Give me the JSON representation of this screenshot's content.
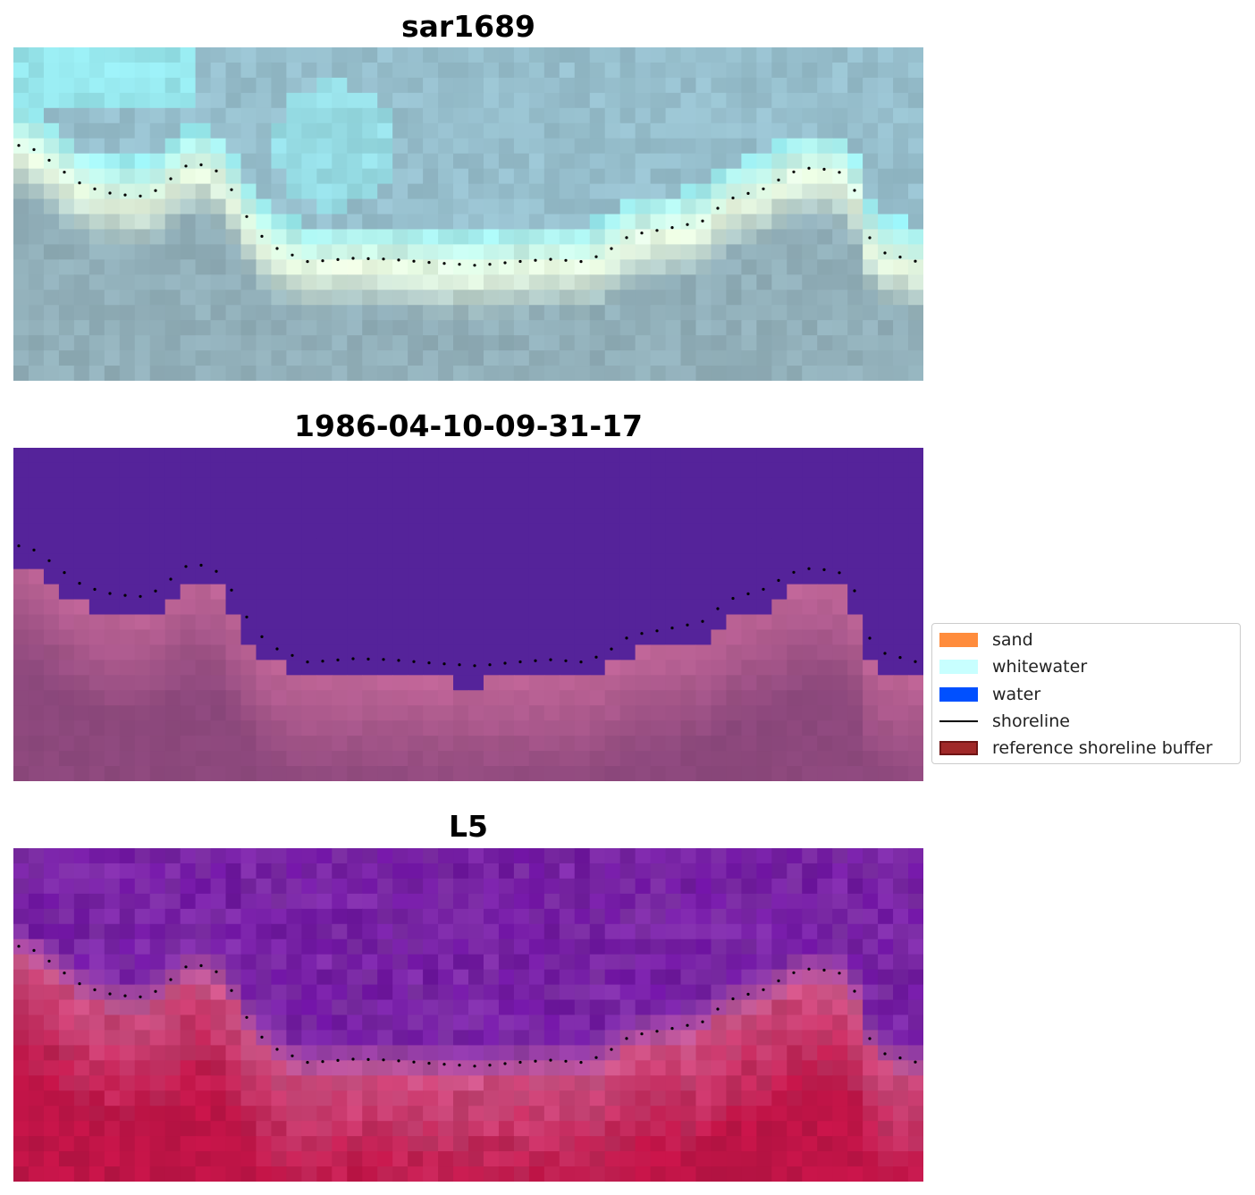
{
  "panels": [
    {
      "title": "sar1689",
      "style": "rgb"
    },
    {
      "title": "1986-04-10-09-31-17",
      "style": "classified"
    },
    {
      "title": "L5",
      "style": "index"
    }
  ],
  "legend": {
    "items": [
      {
        "label": "sand",
        "color": "#ff8c3c",
        "kind": "patch"
      },
      {
        "label": "whitewater",
        "color": "#c8ffff",
        "kind": "patch"
      },
      {
        "label": "water",
        "color": "#0050ff",
        "kind": "patch"
      },
      {
        "label": "shoreline",
        "color": "#000000",
        "kind": "line"
      },
      {
        "label": "reference shoreline buffer",
        "color": "#a02828",
        "kind": "patch"
      }
    ]
  },
  "colors": {
    "ocean_purple": "#55239a",
    "buffer_pink": "#8e4a7c",
    "shoreline": "#000000"
  }
}
